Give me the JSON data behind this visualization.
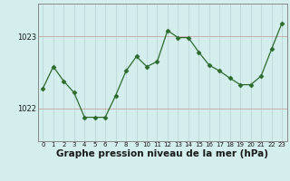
{
  "x": [
    0,
    1,
    2,
    3,
    4,
    5,
    6,
    7,
    8,
    9,
    10,
    11,
    12,
    13,
    14,
    15,
    16,
    17,
    18,
    19,
    20,
    21,
    22,
    23
  ],
  "y": [
    1022.28,
    1022.58,
    1022.38,
    1022.22,
    1021.88,
    1021.88,
    1021.88,
    1022.18,
    1022.52,
    1022.72,
    1022.58,
    1022.65,
    1023.08,
    1022.98,
    1022.98,
    1022.78,
    1022.6,
    1022.52,
    1022.42,
    1022.33,
    1022.33,
    1022.45,
    1022.82,
    1023.18
  ],
  "line_color": "#2d6a2d",
  "marker": "D",
  "marker_size": 2.5,
  "bg_color": "#d4eeee",
  "grid_color_h": "#c8a0a0",
  "grid_color_v": "#b8d4d4",
  "xlabel": "Graphe pression niveau de la mer (hPa)",
  "xlabel_fontsize": 7.5,
  "ytick_vals": [
    1022,
    1023
  ],
  "ylim": [
    1021.55,
    1023.45
  ],
  "xlim": [
    -0.5,
    23.5
  ],
  "xtick_labels": [
    "0",
    "1",
    "2",
    "3",
    "4",
    "5",
    "6",
    "7",
    "8",
    "9",
    "10",
    "11",
    "12",
    "13",
    "14",
    "15",
    "16",
    "17",
    "18",
    "19",
    "20",
    "21",
    "22",
    "23"
  ]
}
